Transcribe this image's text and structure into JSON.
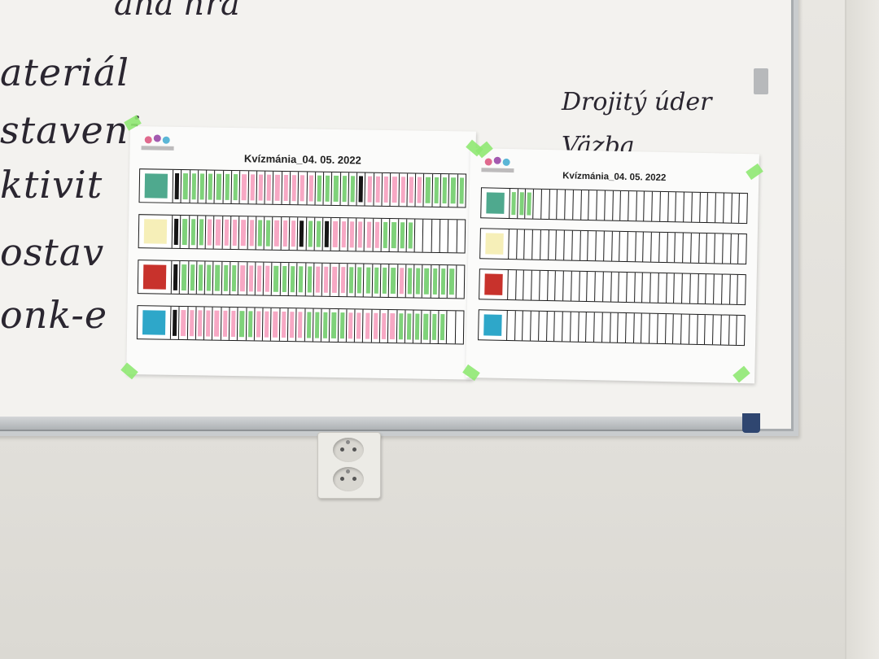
{
  "board": {
    "left_words": [
      "ateriál",
      "staveni",
      "ktivit",
      "ostav",
      "onk-e"
    ],
    "top_fragment": "ana hra",
    "right_words": [
      "Drojitý úder",
      "Väzba"
    ]
  },
  "sheets": [
    {
      "title": "Kvízmánia_04. 05. 2022",
      "logo_caption": "",
      "rows": [
        {
          "swatch": "#4fa98e",
          "marks": "kgggggggpppppppppgggggkpppppppggggg"
        },
        {
          "swatch": "#f6efb8",
          "marks": "kgggppppppggpppkggkppppppgggg      "
        },
        {
          "swatch": "#c8322c",
          "marks": "kgggggggppppgggggppppggggggpgggggg "
        },
        {
          "swatch": "#2ea7c9",
          "marks": "kpppppppggppppppgggggppppppgggggg  "
        }
      ]
    },
    {
      "title": "Kvízmánia_04. 05. 2022",
      "logo_caption": "",
      "rows": [
        {
          "swatch": "#4fa98e",
          "marks": "ggg                           "
        },
        {
          "swatch": "#f6efb8",
          "marks": "                              "
        },
        {
          "swatch": "#c8322c",
          "marks": "                              "
        },
        {
          "swatch": "#2ea7c9",
          "marks": "                              "
        }
      ]
    }
  ],
  "colors": {
    "green": "#7fd27a",
    "pink": "#f7a8c4",
    "black": "#151515"
  },
  "icons": [
    "power-socket-icon",
    "logo-icon"
  ]
}
